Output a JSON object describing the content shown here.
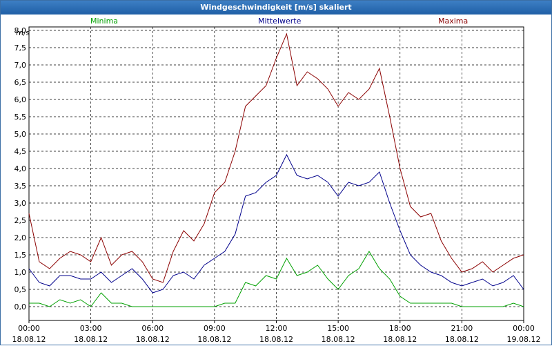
{
  "window": {
    "title": "Windgeschwindigkeit [m/s] skaliert"
  },
  "chart_data": {
    "type": "line",
    "title": "Windgeschwindigkeit [m/s] skaliert",
    "ylabel": "m/s",
    "ylim": [
      -0.4,
      8.1
    ],
    "xlim": [
      0,
      24
    ],
    "grid": true,
    "y_ticks": [
      "8,0",
      "7,5",
      "7,0",
      "6,5",
      "6,0",
      "5,5",
      "5,0",
      "4,5",
      "4,0",
      "3,5",
      "3,0",
      "2,5",
      "2,0",
      "1,5",
      "1,0",
      "0,5",
      "0,0"
    ],
    "y_tick_values": [
      8.0,
      7.5,
      7.0,
      6.5,
      6.0,
      5.5,
      5.0,
      4.5,
      4.0,
      3.5,
      3.0,
      2.5,
      2.0,
      1.5,
      1.0,
      0.5,
      0.0
    ],
    "x_ticks": [
      {
        "time": "00:00",
        "date": "18.08.12",
        "hour": 0
      },
      {
        "time": "03:00",
        "date": "18.08.12",
        "hour": 3
      },
      {
        "time": "06:00",
        "date": "18.08.12",
        "hour": 6
      },
      {
        "time": "09:00",
        "date": "18.08.12",
        "hour": 9
      },
      {
        "time": "12:00",
        "date": "18.08.12",
        "hour": 12
      },
      {
        "time": "15:00",
        "date": "18.08.12",
        "hour": 15
      },
      {
        "time": "18:00",
        "date": "18.08.12",
        "hour": 18
      },
      {
        "time": "21:00",
        "date": "18.08.12",
        "hour": 21
      },
      {
        "time": "00:00",
        "date": "19.08.12",
        "hour": 24
      }
    ],
    "legend": [
      {
        "name": "Minima",
        "color": "#00a000"
      },
      {
        "name": "Mittelwerte",
        "color": "#00008b"
      },
      {
        "name": "Maxima",
        "color": "#8b0000"
      }
    ],
    "x": [
      0,
      0.5,
      1,
      1.5,
      2,
      2.5,
      3,
      3.5,
      4,
      4.5,
      5,
      5.5,
      6,
      6.5,
      7,
      7.5,
      8,
      8.5,
      9,
      9.5,
      10,
      10.5,
      11,
      11.5,
      12,
      12.5,
      13,
      13.5,
      14,
      14.5,
      15,
      15.5,
      16,
      16.5,
      17,
      17.5,
      18,
      18.5,
      19,
      19.5,
      20,
      20.5,
      21,
      21.5,
      22,
      22.5,
      23,
      23.5,
      24
    ],
    "series": [
      {
        "name": "Maxima",
        "color": "#8b0000",
        "values": [
          2.7,
          1.3,
          1.1,
          1.4,
          1.6,
          1.5,
          1.3,
          2.0,
          1.2,
          1.5,
          1.6,
          1.3,
          0.8,
          0.7,
          1.6,
          2.2,
          1.9,
          2.4,
          3.3,
          3.6,
          4.5,
          5.8,
          6.1,
          6.4,
          7.2,
          7.9,
          6.4,
          6.8,
          6.6,
          6.3,
          5.8,
          6.2,
          6.0,
          6.3,
          6.9,
          5.5,
          4.0,
          2.9,
          2.6,
          2.7,
          1.9,
          1.4,
          1.0,
          1.1,
          1.3,
          1.0,
          1.2,
          1.4,
          1.5
        ]
      },
      {
        "name": "Mittelwerte",
        "color": "#00008b",
        "values": [
          1.1,
          0.7,
          0.6,
          0.9,
          0.9,
          0.8,
          0.8,
          1.0,
          0.7,
          0.9,
          1.1,
          0.8,
          0.4,
          0.5,
          0.9,
          1.0,
          0.8,
          1.2,
          1.4,
          1.6,
          2.1,
          3.2,
          3.3,
          3.6,
          3.8,
          4.4,
          3.8,
          3.7,
          3.8,
          3.6,
          3.2,
          3.6,
          3.5,
          3.6,
          3.9,
          3.0,
          2.2,
          1.5,
          1.2,
          1.0,
          0.9,
          0.7,
          0.6,
          0.7,
          0.8,
          0.6,
          0.7,
          0.9,
          0.5
        ]
      },
      {
        "name": "Minima",
        "color": "#00a000",
        "values": [
          0.1,
          0.1,
          0.0,
          0.2,
          0.1,
          0.2,
          0.0,
          0.4,
          0.1,
          0.1,
          0.0,
          0.0,
          0.0,
          0.0,
          0.0,
          0.0,
          0.0,
          0.0,
          0.0,
          0.1,
          0.1,
          0.7,
          0.6,
          0.9,
          0.8,
          1.4,
          0.9,
          1.0,
          1.2,
          0.8,
          0.5,
          0.9,
          1.1,
          1.6,
          1.1,
          0.8,
          0.3,
          0.1,
          0.1,
          0.1,
          0.1,
          0.1,
          0.0,
          0.0,
          0.0,
          0.0,
          0.0,
          0.1,
          0.0
        ]
      }
    ]
  }
}
